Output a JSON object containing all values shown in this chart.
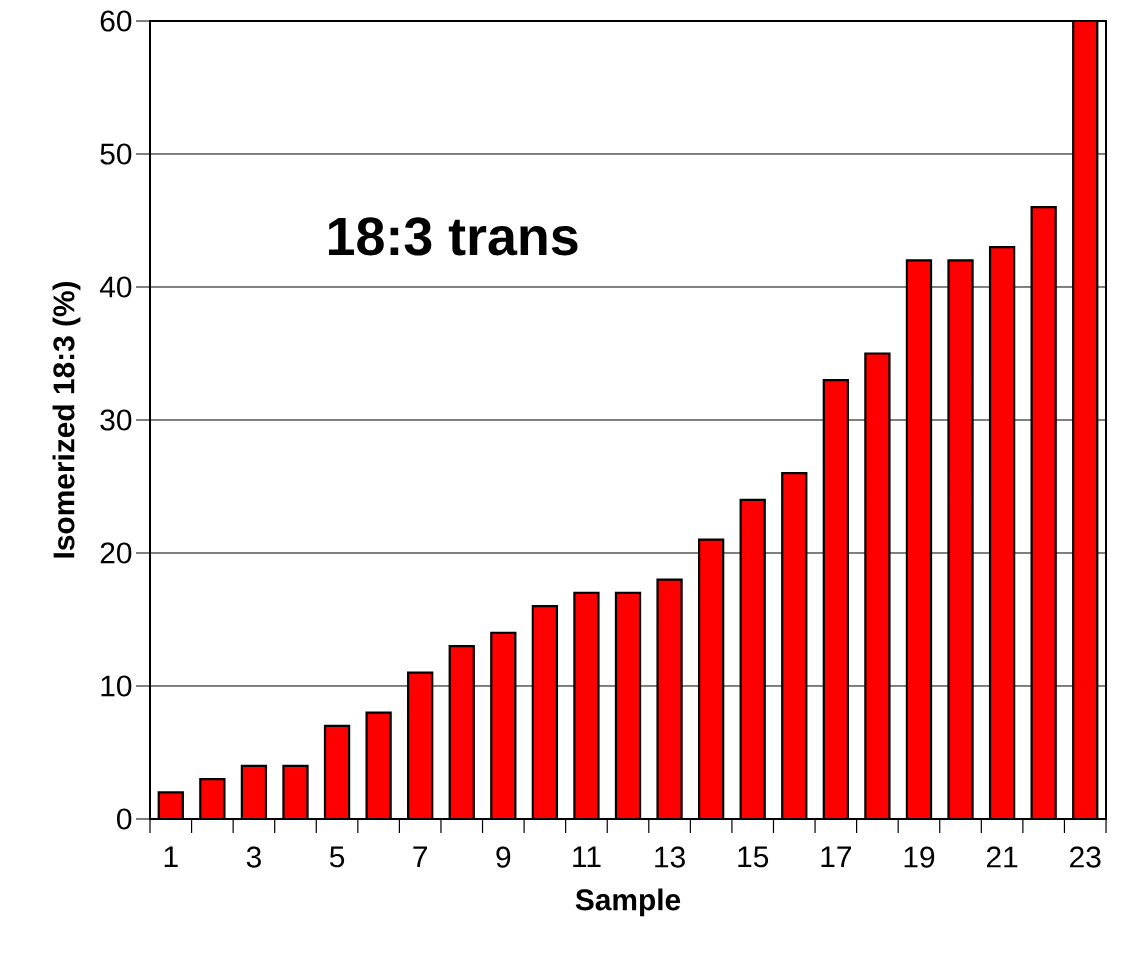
{
  "chart_data": {
    "type": "bar",
    "xlabel": "Sample",
    "ylabel": "Isomerized 18:3 (%)",
    "annotations": [
      "18:3 trans"
    ],
    "categories": [
      "1",
      null,
      "3",
      null,
      "5",
      null,
      "7",
      null,
      "9",
      null,
      "11",
      null,
      "13",
      null,
      "15",
      null,
      "17",
      null,
      "19",
      null,
      "21",
      null,
      "23"
    ],
    "values": [
      2,
      3,
      4,
      4,
      7,
      8,
      11,
      13,
      14,
      16,
      17,
      17,
      18,
      21,
      24,
      26,
      33,
      35,
      42,
      42,
      43,
      46,
      60
    ],
    "color": "#ff0000",
    "ylim": [
      0,
      60
    ],
    "yticks": [
      0,
      10,
      20,
      30,
      40,
      50,
      60
    ],
    "grid": "y"
  }
}
